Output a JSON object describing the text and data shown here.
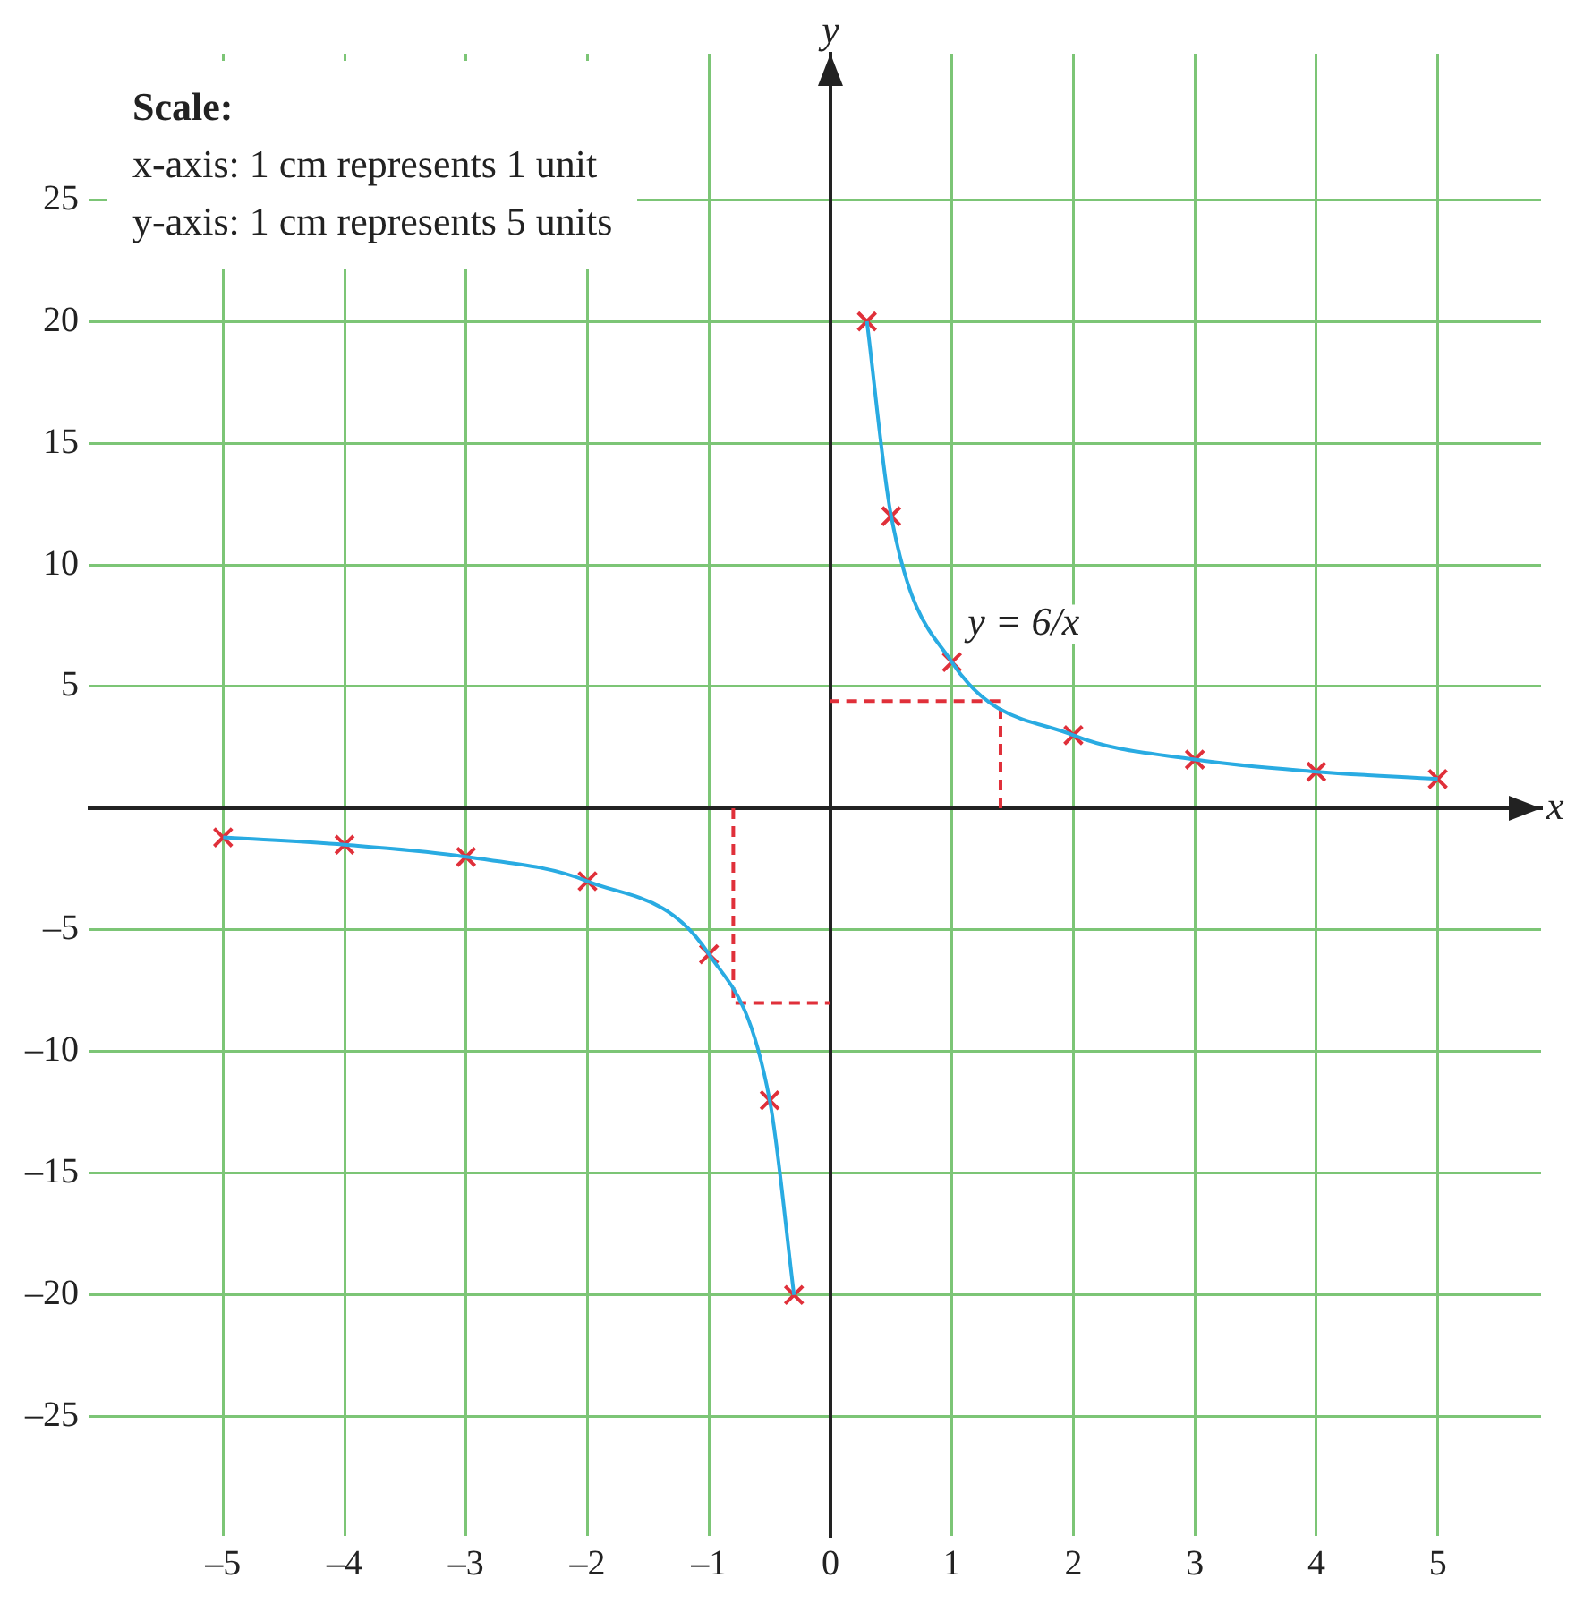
{
  "chart_data": {
    "type": "scatter",
    "xlabel": "x",
    "ylabel": "y",
    "xlim": [
      -6.1,
      5.85
    ],
    "ylim": [
      -29.9,
      31
    ],
    "xticks": [
      {
        "value": -5,
        "label": "–5"
      },
      {
        "value": -4,
        "label": "–4"
      },
      {
        "value": -3,
        "label": "–3"
      },
      {
        "value": -2,
        "label": "–2"
      },
      {
        "value": -1,
        "label": "–1"
      },
      0,
      1,
      2,
      3,
      4,
      5
    ],
    "yticks": [
      {
        "value": -25,
        "label": "–25"
      },
      {
        "value": -20,
        "label": "–20"
      },
      {
        "value": -15,
        "label": "–15"
      },
      {
        "value": -10,
        "label": "–10"
      },
      {
        "value": -5,
        "label": "–5"
      },
      5,
      10,
      15,
      20,
      25
    ],
    "grid": true,
    "legend": false,
    "series": [
      {
        "type": "line",
        "color": "#29abe2",
        "marker": "none",
        "line_style": "solid",
        "x": [
          0.3,
          0.5,
          1,
          2,
          3,
          4,
          5
        ],
        "values": [
          20,
          12,
          6,
          3,
          2,
          1.5,
          1.2
        ]
      },
      {
        "type": "line",
        "color": "#29abe2",
        "marker": "none",
        "line_style": "solid",
        "x": [
          -5,
          -4,
          -3,
          -2,
          -1,
          -0.5,
          -0.3
        ],
        "values": [
          -1.2,
          -1.5,
          -2,
          -3,
          -6,
          -12,
          -20
        ]
      },
      {
        "type": "scatter",
        "color": "#e0303a",
        "marker": "cross",
        "x": [
          -5,
          -4,
          -3,
          -2,
          -1,
          -0.5,
          -0.3,
          0.3,
          0.5,
          1,
          2,
          3,
          4,
          5
        ],
        "values": [
          -1.2,
          -1.5,
          -2,
          -3,
          -6,
          -12,
          -20,
          20,
          12,
          6,
          3,
          2,
          1.5,
          1.2
        ]
      },
      {
        "type": "line",
        "color": "#e0303a",
        "marker": "none",
        "line_style": "dashed",
        "x": [
          1.4,
          1.4,
          0
        ],
        "values": [
          0,
          4.4,
          4.4
        ]
      },
      {
        "type": "line",
        "color": "#e0303a",
        "marker": "none",
        "line_style": "dashed",
        "x": [
          -0.8,
          -0.8,
          0
        ],
        "values": [
          0,
          -8,
          -8
        ]
      }
    ],
    "annotations": [
      "Scale:",
      "x-axis: 1 cm represents 1 unit",
      "y-axis: 1 cm represents 5 units",
      "y = 6/x"
    ]
  }
}
